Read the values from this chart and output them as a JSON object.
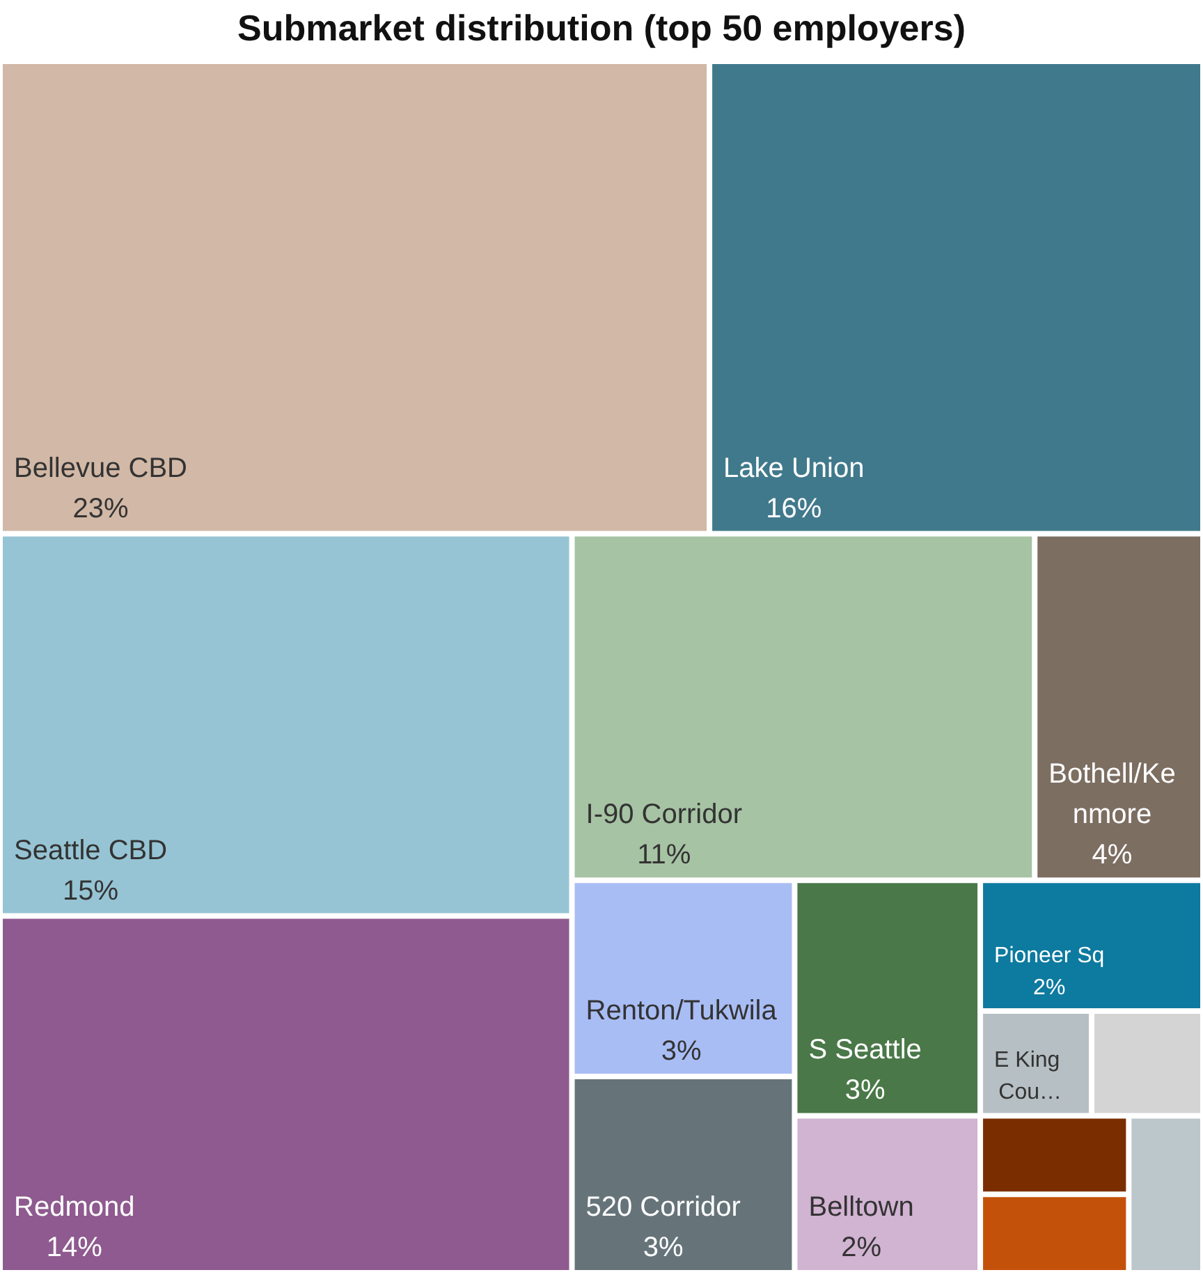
{
  "chart_data": {
    "type": "other",
    "title": "Submarket distribution (top 50 employers)",
    "categories": [
      "Bellevue CBD",
      "Lake Union",
      "Seattle CBD",
      "Redmond",
      "I-90 Corridor",
      "Bothell/Kenmore",
      "Renton/Tukwila",
      "520 Corridor",
      "S Seattle",
      "Belltown",
      "Pioneer Sq",
      "E King Cou…",
      null,
      null,
      null,
      null
    ],
    "values": [
      23,
      16,
      15,
      14,
      11,
      4,
      3,
      3,
      3,
      2,
      2,
      null,
      null,
      null,
      null,
      null
    ],
    "value_labels": [
      "23%",
      "16%",
      "15%",
      "14%",
      "11%",
      "4%",
      "3%",
      "3%",
      "3%",
      "2%",
      "2%",
      null,
      null,
      null,
      null,
      null
    ],
    "colors": [
      "#d2b8a6",
      "#41798c",
      "#96c4d4",
      "#8e5a8f",
      "#a6c3a3",
      "#7d6e62",
      "#a9bdf5",
      "#66747a",
      "#4a7848",
      "#d1b3d2",
      "#0d7aa0",
      "#b6bfc3",
      "#d4d4d4",
      "#7a2e00",
      "#c4510a",
      "#bcc7cc"
    ]
  }
}
